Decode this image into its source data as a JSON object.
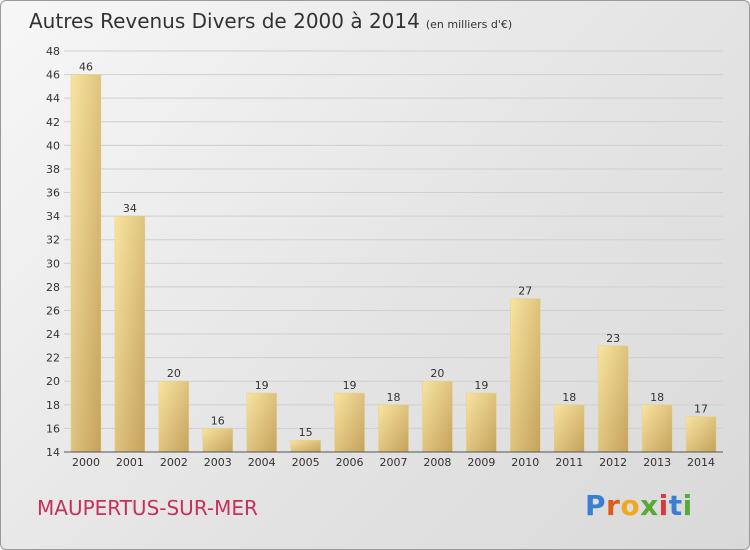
{
  "title": "Autres Revenus Divers de 2000 à 2014",
  "unit": "(en milliers d'€)",
  "commune": "MAUPERTUS-SUR-MER",
  "brand": [
    "P",
    "r",
    "o",
    "x",
    "i",
    "t",
    "i"
  ],
  "colors": {
    "bar_light": "#f6df96",
    "bar_dark": "#c8a860",
    "grid": "#cfcfcf",
    "commune": "#c8305a"
  },
  "chart_data": {
    "type": "bar",
    "categories": [
      "2000",
      "2001",
      "2002",
      "2003",
      "2004",
      "2005",
      "2006",
      "2007",
      "2008",
      "2009",
      "2010",
      "2011",
      "2012",
      "2013",
      "2014"
    ],
    "values": [
      46,
      34,
      20,
      16,
      19,
      15,
      19,
      18,
      20,
      19,
      27,
      18,
      23,
      18,
      17
    ],
    "ylim": [
      14,
      48
    ],
    "yticks": [
      14,
      16,
      18,
      20,
      22,
      24,
      26,
      28,
      30,
      32,
      34,
      36,
      38,
      40,
      42,
      44,
      46,
      48
    ],
    "grid": true,
    "legend": "none"
  }
}
